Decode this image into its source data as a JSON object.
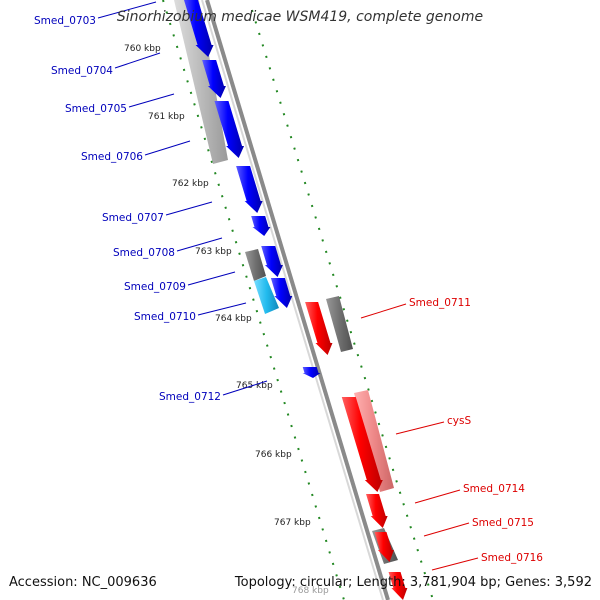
{
  "title": "Sinorhizobium medicae WSM419, complete genome",
  "footer": {
    "accession": "Accession: NC_009636",
    "summary": "Topology: circular; Length: 3,781,904 bp; Genes: 3,592"
  },
  "colors": {
    "forward_gene": "#0000ff",
    "reverse_gene": "#ff0000",
    "reverse_gene_light": "#ee8888",
    "forward_cds_light": "#aaaaaa",
    "other_feature": "#707070",
    "trna": "#22bbee",
    "ticks": "#228822",
    "backbone": "#808080",
    "forward_label": "#0000bb",
    "reverse_label": "#dd0000"
  },
  "ruler": [
    {
      "label": "760 kbp"
    },
    {
      "label": "761 kbp"
    },
    {
      "label": "762 kbp"
    },
    {
      "label": "763 kbp"
    },
    {
      "label": "764 kbp"
    },
    {
      "label": "765 kbp"
    },
    {
      "label": "766 kbp"
    },
    {
      "label": "767 kbp"
    },
    {
      "label": "768 kbp"
    }
  ],
  "forward_labels": [
    {
      "label": "Smed_0703"
    },
    {
      "label": "Smed_0704"
    },
    {
      "label": "Smed_0705"
    },
    {
      "label": "Smed_0706"
    },
    {
      "label": "Smed_0707"
    },
    {
      "label": "Smed_0708"
    },
    {
      "label": "Smed_0709"
    },
    {
      "label": "Smed_0710"
    },
    {
      "label": "Smed_0712"
    }
  ],
  "reverse_labels": [
    {
      "label": "Smed_0711"
    },
    {
      "label": "cysS"
    },
    {
      "label": "Smed_0714"
    },
    {
      "label": "Smed_0715"
    },
    {
      "label": "Smed_0716"
    }
  ]
}
